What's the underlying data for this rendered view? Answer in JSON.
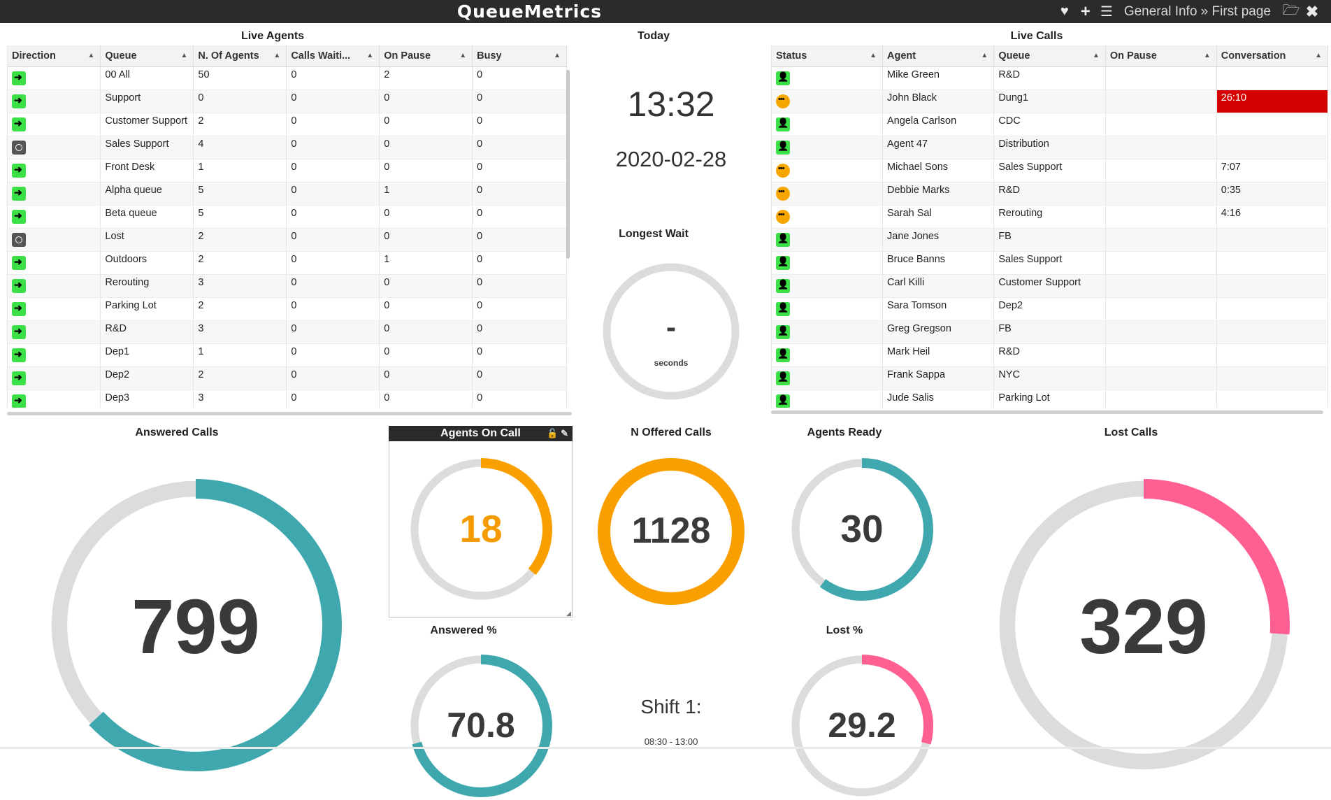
{
  "app": {
    "logo": "QueueMetrics",
    "breadcrumb": "General Info » First page",
    "icons": [
      "heart-icon",
      "plus-icon",
      "list-icon",
      "folder-open-icon",
      "close-icon"
    ]
  },
  "live_agents": {
    "title": "Live Agents",
    "columns": [
      "Direction",
      "Queue",
      "N. Of Agents",
      "Calls Waiti...",
      "On Pause",
      "Busy"
    ],
    "rows": [
      {
        "status": "login",
        "queue": "00 All",
        "agents": "50",
        "waiting": "0",
        "pause": "2",
        "busy": "0"
      },
      {
        "status": "login",
        "queue": "Support",
        "agents": "0",
        "waiting": "0",
        "pause": "0",
        "busy": "0"
      },
      {
        "status": "login",
        "queue": "Customer Support",
        "agents": "2",
        "waiting": "0",
        "pause": "0",
        "busy": "0"
      },
      {
        "status": "paused",
        "queue": "Sales Support",
        "agents": "4",
        "waiting": "0",
        "pause": "0",
        "busy": "0"
      },
      {
        "status": "login",
        "queue": "Front Desk",
        "agents": "1",
        "waiting": "0",
        "pause": "0",
        "busy": "0"
      },
      {
        "status": "login",
        "queue": "Alpha queue",
        "agents": "5",
        "waiting": "0",
        "pause": "1",
        "busy": "0"
      },
      {
        "status": "login",
        "queue": "Beta queue",
        "agents": "5",
        "waiting": "0",
        "pause": "0",
        "busy": "0"
      },
      {
        "status": "paused",
        "queue": "Lost",
        "agents": "2",
        "waiting": "0",
        "pause": "0",
        "busy": "0"
      },
      {
        "status": "login",
        "queue": "Outdoors",
        "agents": "2",
        "waiting": "0",
        "pause": "1",
        "busy": "0"
      },
      {
        "status": "login",
        "queue": "Rerouting",
        "agents": "3",
        "waiting": "0",
        "pause": "0",
        "busy": "0"
      },
      {
        "status": "login",
        "queue": "Parking Lot",
        "agents": "2",
        "waiting": "0",
        "pause": "0",
        "busy": "0"
      },
      {
        "status": "login",
        "queue": "R&D",
        "agents": "3",
        "waiting": "0",
        "pause": "0",
        "busy": "0"
      },
      {
        "status": "login",
        "queue": "Dep1",
        "agents": "1",
        "waiting": "0",
        "pause": "0",
        "busy": "0"
      },
      {
        "status": "login",
        "queue": "Dep2",
        "agents": "2",
        "waiting": "0",
        "pause": "0",
        "busy": "0"
      },
      {
        "status": "login",
        "queue": "Dep3",
        "agents": "3",
        "waiting": "0",
        "pause": "0",
        "busy": "0"
      }
    ]
  },
  "today": {
    "title": "Today",
    "time": "13:32",
    "date": "2020-02-28",
    "longest_wait_label": "Longest Wait",
    "longest_wait_value": "-",
    "longest_wait_unit": "seconds"
  },
  "live_calls": {
    "title": "Live Calls",
    "columns": [
      "Status",
      "Agent",
      "Queue",
      "On Pause",
      "Conversation"
    ],
    "rows": [
      {
        "status": "agent",
        "agent": "Mike Green",
        "queue": "R&D",
        "pause": "",
        "conversation": "",
        "alert": false
      },
      {
        "status": "talk",
        "agent": "John Black",
        "queue": "Dung1",
        "pause": "",
        "conversation": "26:10",
        "alert": true
      },
      {
        "status": "agent",
        "agent": "Angela Carlson",
        "queue": "CDC",
        "pause": "",
        "conversation": "",
        "alert": false
      },
      {
        "status": "agent",
        "agent": "Agent 47",
        "queue": "Distribution",
        "pause": "",
        "conversation": "",
        "alert": false
      },
      {
        "status": "talk",
        "agent": "Michael Sons",
        "queue": "Sales Support",
        "pause": "",
        "conversation": "7:07",
        "alert": false
      },
      {
        "status": "talk",
        "agent": "Debbie Marks",
        "queue": "R&D",
        "pause": "",
        "conversation": "0:35",
        "alert": false
      },
      {
        "status": "talk",
        "agent": "Sarah Sal",
        "queue": "Rerouting",
        "pause": "",
        "conversation": "4:16",
        "alert": false
      },
      {
        "status": "agent",
        "agent": "Jane Jones",
        "queue": "FB",
        "pause": "",
        "conversation": "",
        "alert": false
      },
      {
        "status": "agent",
        "agent": "Bruce Banns",
        "queue": "Sales Support",
        "pause": "",
        "conversation": "",
        "alert": false
      },
      {
        "status": "agent",
        "agent": "Carl Killi",
        "queue": "Customer Support",
        "pause": "",
        "conversation": "",
        "alert": false
      },
      {
        "status": "agent",
        "agent": "Sara Tomson",
        "queue": "Dep2",
        "pause": "",
        "conversation": "",
        "alert": false
      },
      {
        "status": "agent",
        "agent": "Greg Gregson",
        "queue": "FB",
        "pause": "",
        "conversation": "",
        "alert": false
      },
      {
        "status": "agent",
        "agent": "Mark Heil",
        "queue": "R&D",
        "pause": "",
        "conversation": "",
        "alert": false
      },
      {
        "status": "agent",
        "agent": "Frank Sappa",
        "queue": "NYC",
        "pause": "",
        "conversation": "",
        "alert": false
      },
      {
        "status": "agent",
        "agent": "Jude Salis",
        "queue": "Parking Lot",
        "pause": "",
        "conversation": "",
        "alert": false
      }
    ]
  },
  "gauges": {
    "answered_calls": {
      "label": "Answered Calls",
      "value": "799",
      "fraction": 0.63,
      "color": "#3fa7ae"
    },
    "agents_on_call": {
      "label": "Agents On Call",
      "value": "18",
      "fraction": 0.36,
      "color": "#f9a000"
    },
    "offered_calls": {
      "label": "N Offered Calls",
      "value": "1128",
      "fraction": 1.0,
      "color": "#f9a000"
    },
    "agents_ready": {
      "label": "Agents Ready",
      "value": "30",
      "fraction": 0.6,
      "color": "#3fa7ae"
    },
    "lost_calls": {
      "label": "Lost Calls",
      "value": "329",
      "fraction": 0.26,
      "color": "#ff5f91"
    },
    "answered_pct": {
      "label": "Answered %",
      "value": "70.8",
      "fraction": 0.708,
      "color": "#3fa7ae"
    },
    "lost_pct": {
      "label": "Lost %",
      "value": "29.2",
      "fraction": 0.292,
      "color": "#ff5f91"
    }
  },
  "shift": {
    "title": "Shift 1:",
    "hours": "08:30 - 13:00"
  }
}
